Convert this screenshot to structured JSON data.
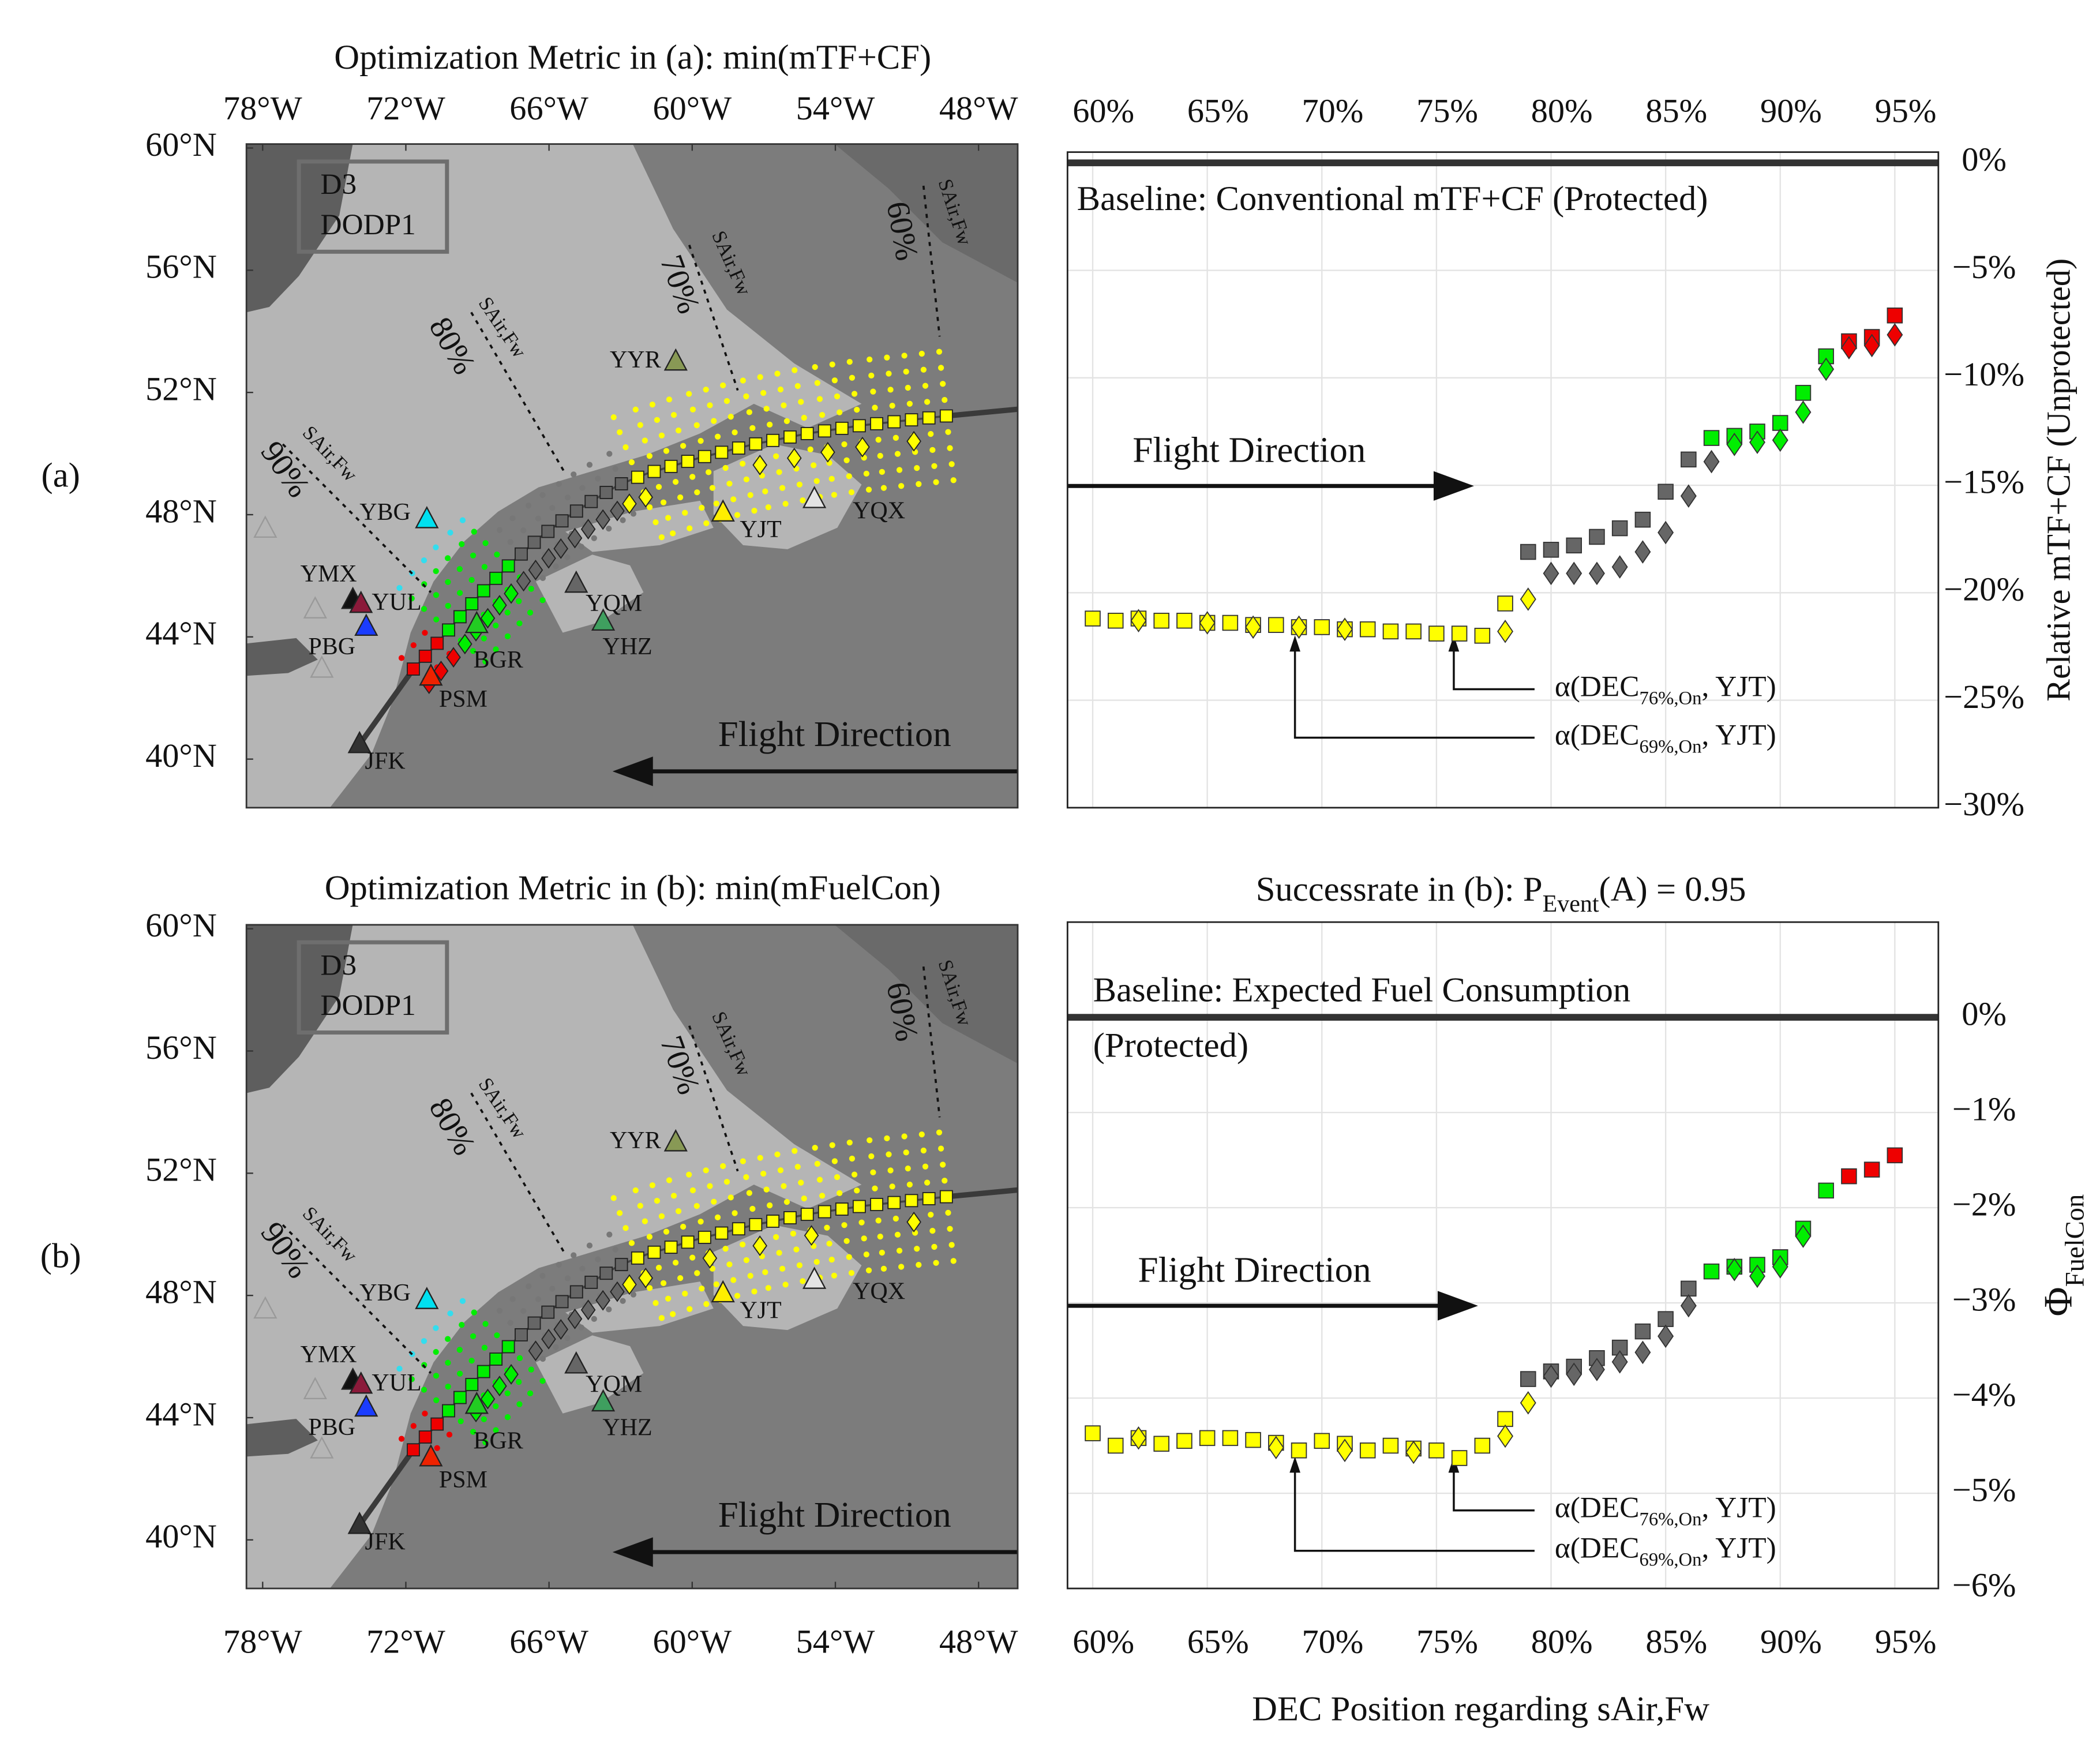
{
  "chart_data": [
    {
      "type": "map",
      "panel_label": "(a)",
      "title": "Optimization Metric in (a): min(mTF+CF)",
      "xaxis_side": "top",
      "xlim": [
        -78.68,
        -46.36
      ],
      "ylim": [
        38.41,
        60.13
      ],
      "xticks": [
        {
          "value": -78,
          "label": "78°W"
        },
        {
          "value": -72,
          "label": "72°W"
        },
        {
          "value": -66,
          "label": "66°W"
        },
        {
          "value": -60,
          "label": "60°W"
        },
        {
          "value": -54,
          "label": "54°W"
        },
        {
          "value": -48,
          "label": "48°W"
        }
      ],
      "yticks": [
        {
          "value": 40,
          "label": "40°N"
        },
        {
          "value": 44,
          "label": "44°N"
        },
        {
          "value": 48,
          "label": "48°N"
        },
        {
          "value": 52,
          "label": "52°N"
        },
        {
          "value": 56,
          "label": "56°N"
        },
        {
          "value": 60,
          "label": "60°N"
        }
      ],
      "box_text": [
        "D3",
        "DODP1"
      ],
      "annotation": "Flight Direction",
      "dec_lines": [
        {
          "label": "60%",
          "sublabel": "SAir,Fw"
        },
        {
          "label": "70%",
          "sublabel": "SAir,Fw"
        },
        {
          "label": "80%",
          "sublabel": "SAir,Fw"
        },
        {
          "label": "90%",
          "sublabel": "SAir,Fw"
        }
      ],
      "airports": [
        {
          "name": "YBG",
          "lon": -71.12,
          "lat": 47.84,
          "color": "#00e0f0"
        },
        {
          "name": "YMX",
          "lon": -74.22,
          "lat": 45.2,
          "color": "#111111"
        },
        {
          "name": "YUL",
          "lon": -73.88,
          "lat": 45.07,
          "color": "#8b1a3a"
        },
        {
          "name": "PBG",
          "lon": -73.66,
          "lat": 44.32,
          "color": "#1a3cff"
        },
        {
          "name": "BGR",
          "lon": -69.03,
          "lat": 44.41,
          "color": "#22cc22"
        },
        {
          "name": "PSM",
          "lon": -70.95,
          "lat": 42.69,
          "color": "#ee2200"
        },
        {
          "name": "JFK",
          "lon": -73.94,
          "lat": 40.48,
          "color": "#333333"
        },
        {
          "name": "YQM",
          "lon": -64.86,
          "lat": 45.73,
          "color": "#666666"
        },
        {
          "name": "YHZ",
          "lon": -63.73,
          "lat": 44.49,
          "color": "#3f9f5f"
        },
        {
          "name": "YJT",
          "lon": -58.71,
          "lat": 48.06,
          "color": "#ffee00"
        },
        {
          "name": "YQX",
          "lon": -54.88,
          "lat": 48.5,
          "color": "#e4e4e4"
        },
        {
          "name": "YYR",
          "lon": -60.69,
          "lat": 53.0,
          "color": "#889955"
        },
        {
          "name": null,
          "lon": -77.89,
          "lat": 47.53,
          "color": "#999999"
        },
        {
          "name": null,
          "lon": -75.8,
          "lat": 44.89,
          "color": "#999999"
        },
        {
          "name": null,
          "lon": -75.52,
          "lat": 42.95,
          "color": "#999999"
        }
      ]
    },
    {
      "type": "scatter",
      "xaxis_side": "top",
      "grid": true,
      "xlim": [
        58.9,
        96.9
      ],
      "ylim": [
        -30,
        0.5
      ],
      "xticks": [
        {
          "value": 60,
          "label": "60%"
        },
        {
          "value": 65,
          "label": "65%"
        },
        {
          "value": 70,
          "label": "70%"
        },
        {
          "value": 75,
          "label": "75%"
        },
        {
          "value": 80,
          "label": "80%"
        },
        {
          "value": 85,
          "label": "85%"
        },
        {
          "value": 90,
          "label": "90%"
        },
        {
          "value": 95,
          "label": "95%"
        }
      ],
      "yticks": [
        {
          "value": 0,
          "label": "0%"
        },
        {
          "value": -5,
          "label": "−5%"
        },
        {
          "value": -10,
          "label": "−10%"
        },
        {
          "value": -15,
          "label": "−15%"
        },
        {
          "value": -20,
          "label": "−20%"
        },
        {
          "value": -25,
          "label": "−25%"
        },
        {
          "value": -30,
          "label": "−30%"
        }
      ],
      "ylabel": [
        "Relative mTF+CF (Unprotected)"
      ],
      "baseline": 0,
      "baseline_label": [
        "Baseline: Conventional mTF+CF (Protected)"
      ],
      "annotation": "Flight Direction",
      "alpha_labels": [
        [
          "α(DEC",
          "76%,On",
          ", YJT)"
        ],
        [
          "α(DEC",
          "69%,On",
          ", YJT)"
        ]
      ],
      "series": [
        {
          "marker": "square",
          "x": [
            60,
            61,
            62,
            63,
            64,
            65,
            66,
            67,
            68,
            69,
            70,
            71,
            72,
            73,
            74,
            75,
            76,
            77,
            78,
            79,
            80,
            81,
            82,
            83,
            84,
            85,
            86,
            87,
            88,
            89,
            90,
            91,
            92,
            93,
            94,
            95
          ],
          "values": [
            -21.2,
            -21.3,
            -21.2,
            -21.3,
            -21.3,
            -21.4,
            -21.4,
            -21.5,
            -21.5,
            -21.6,
            -21.6,
            -21.7,
            -21.7,
            -21.8,
            -21.8,
            -21.9,
            -21.9,
            -22.0,
            -20.5,
            -18.1,
            -18.0,
            -17.8,
            -17.4,
            -17.0,
            -16.6,
            -15.3,
            -13.8,
            -12.8,
            -12.7,
            -12.5,
            -12.1,
            -10.7,
            -9.0,
            -8.3,
            -8.1,
            -7.1
          ],
          "colors": [
            "#ffff00",
            "#ffff00",
            "#ffff00",
            "#ffff00",
            "#ffff00",
            "#ffff00",
            "#ffff00",
            "#ffff00",
            "#ffff00",
            "#ffff00",
            "#ffff00",
            "#ffff00",
            "#ffff00",
            "#ffff00",
            "#ffff00",
            "#ffff00",
            "#ffff00",
            "#ffff00",
            "#ffff00",
            "#666666",
            "#666666",
            "#666666",
            "#666666",
            "#666666",
            "#666666",
            "#666666",
            "#666666",
            "#00ee00",
            "#00ee00",
            "#00ee00",
            "#00ee00",
            "#00ee00",
            "#00ee00",
            "#ee0000",
            "#ee0000",
            "#ee0000"
          ]
        },
        {
          "marker": "diamond",
          "x": [
            62,
            65,
            67,
            69,
            71,
            78,
            79,
            80,
            81,
            82,
            83,
            84,
            85,
            86,
            87,
            88,
            89,
            90,
            91,
            92,
            93,
            94,
            95
          ],
          "values": [
            -21.3,
            -21.4,
            -21.6,
            -21.6,
            -21.7,
            -21.8,
            -20.3,
            -19.1,
            -19.1,
            -19.1,
            -18.8,
            -18.1,
            -17.2,
            -15.5,
            -13.9,
            -13.1,
            -13.0,
            -12.9,
            -11.6,
            -9.6,
            -8.6,
            -8.5,
            -8.0
          ],
          "colors": [
            "#ffff00",
            "#ffff00",
            "#ffff00",
            "#ffff00",
            "#ffff00",
            "#ffff00",
            "#ffff00",
            "#666666",
            "#666666",
            "#666666",
            "#666666",
            "#666666",
            "#666666",
            "#666666",
            "#666666",
            "#00ee00",
            "#00ee00",
            "#00ee00",
            "#00ee00",
            "#00ee00",
            "#ee0000",
            "#ee0000",
            "#ee0000"
          ]
        }
      ]
    },
    {
      "type": "map",
      "panel_label": "(b)",
      "title": "Optimization Metric in (b): min(mFuelCon)",
      "xaxis_side": "bottom",
      "xlim": [
        -78.68,
        -46.36
      ],
      "ylim": [
        38.41,
        60.13
      ],
      "xticks": [
        {
          "value": -78,
          "label": "78°W"
        },
        {
          "value": -72,
          "label": "72°W"
        },
        {
          "value": -66,
          "label": "66°W"
        },
        {
          "value": -60,
          "label": "60°W"
        },
        {
          "value": -54,
          "label": "54°W"
        },
        {
          "value": -48,
          "label": "48°W"
        }
      ],
      "yticks": [
        {
          "value": 40,
          "label": "40°N"
        },
        {
          "value": 44,
          "label": "44°N"
        },
        {
          "value": 48,
          "label": "48°N"
        },
        {
          "value": 52,
          "label": "52°N"
        },
        {
          "value": 56,
          "label": "56°N"
        },
        {
          "value": 60,
          "label": "60°N"
        }
      ],
      "box_text": [
        "D3",
        "DODP1"
      ],
      "annotation": "Flight Direction",
      "dec_lines": [
        {
          "label": "60%",
          "sublabel": "SAir,Fw"
        },
        {
          "label": "70%",
          "sublabel": "SAir,Fw"
        },
        {
          "label": "80%",
          "sublabel": "SAir,Fw"
        },
        {
          "label": "90%",
          "sublabel": "SAir,Fw"
        }
      ],
      "airports": [
        {
          "name": "YBG",
          "lon": -71.12,
          "lat": 47.84,
          "color": "#00e0f0"
        },
        {
          "name": "YMX",
          "lon": -74.22,
          "lat": 45.2,
          "color": "#111111"
        },
        {
          "name": "YUL",
          "lon": -73.88,
          "lat": 45.07,
          "color": "#8b1a3a"
        },
        {
          "name": "PBG",
          "lon": -73.66,
          "lat": 44.32,
          "color": "#1a3cff"
        },
        {
          "name": "BGR",
          "lon": -69.03,
          "lat": 44.41,
          "color": "#22cc22"
        },
        {
          "name": "PSM",
          "lon": -70.95,
          "lat": 42.69,
          "color": "#ee2200"
        },
        {
          "name": "JFK",
          "lon": -73.94,
          "lat": 40.48,
          "color": "#333333"
        },
        {
          "name": "YQM",
          "lon": -64.86,
          "lat": 45.73,
          "color": "#666666"
        },
        {
          "name": "YHZ",
          "lon": -63.73,
          "lat": 44.49,
          "color": "#3f9f5f"
        },
        {
          "name": "YJT",
          "lon": -58.71,
          "lat": 48.06,
          "color": "#ffee00"
        },
        {
          "name": "YQX",
          "lon": -54.88,
          "lat": 48.5,
          "color": "#e4e4e4"
        },
        {
          "name": "YYR",
          "lon": -60.69,
          "lat": 53.0,
          "color": "#889955"
        },
        {
          "name": null,
          "lon": -77.89,
          "lat": 47.53,
          "color": "#999999"
        },
        {
          "name": null,
          "lon": -75.8,
          "lat": 44.89,
          "color": "#999999"
        },
        {
          "name": null,
          "lon": -75.52,
          "lat": 42.95,
          "color": "#999999"
        }
      ]
    },
    {
      "type": "scatter",
      "xaxis_side": "bottom",
      "grid": true,
      "xlim": [
        58.9,
        96.9
      ],
      "ylim": [
        -6,
        1
      ],
      "title": [
        "Successrate in (b): P",
        "Event",
        "(A) = 0.95"
      ],
      "xlabel": "DEC Position regarding sAir,Fw",
      "xticks": [
        {
          "value": 60,
          "label": "60%"
        },
        {
          "value": 65,
          "label": "65%"
        },
        {
          "value": 70,
          "label": "70%"
        },
        {
          "value": 75,
          "label": "75%"
        },
        {
          "value": 80,
          "label": "80%"
        },
        {
          "value": 85,
          "label": "85%"
        },
        {
          "value": 90,
          "label": "90%"
        },
        {
          "value": 95,
          "label": "95%"
        }
      ],
      "yticks": [
        {
          "value": 0,
          "label": "0%"
        },
        {
          "value": -1,
          "label": "−1%"
        },
        {
          "value": -2,
          "label": "−2%"
        },
        {
          "value": -3,
          "label": "−3%"
        },
        {
          "value": -4,
          "label": "−4%"
        },
        {
          "value": -5,
          "label": "−5%"
        },
        {
          "value": -6,
          "label": "−6%"
        }
      ],
      "ylabel": [
        "Φ",
        "FuelCon"
      ],
      "baseline": 0,
      "baseline_label": [
        "Baseline: Expected Fuel Consumption",
        "(Protected)"
      ],
      "annotation": "Flight Direction",
      "alpha_labels": [
        [
          "α(DEC",
          "76%,On",
          ", YJT)"
        ],
        [
          "α(DEC",
          "69%,On",
          ", YJT)"
        ]
      ],
      "series": [
        {
          "marker": "square",
          "x": [
            60,
            61,
            62,
            63,
            64,
            65,
            66,
            67,
            68,
            69,
            70,
            71,
            72,
            73,
            74,
            75,
            76,
            77,
            78,
            79,
            80,
            81,
            82,
            83,
            84,
            85,
            86,
            87,
            88,
            89,
            90,
            91,
            92,
            93,
            94,
            95
          ],
          "values": [
            -4.37,
            -4.5,
            -4.42,
            -4.48,
            -4.45,
            -4.42,
            -4.42,
            -4.44,
            -4.47,
            -4.55,
            -4.45,
            -4.48,
            -4.55,
            -4.5,
            -4.53,
            -4.55,
            -4.63,
            -4.5,
            -4.22,
            -3.8,
            -3.72,
            -3.67,
            -3.58,
            -3.47,
            -3.3,
            -3.17,
            -2.85,
            -2.67,
            -2.62,
            -2.6,
            -2.52,
            -2.22,
            -1.82,
            -1.67,
            -1.6,
            -1.45
          ],
          "colors": [
            "#ffff00",
            "#ffff00",
            "#ffff00",
            "#ffff00",
            "#ffff00",
            "#ffff00",
            "#ffff00",
            "#ffff00",
            "#ffff00",
            "#ffff00",
            "#ffff00",
            "#ffff00",
            "#ffff00",
            "#ffff00",
            "#ffff00",
            "#ffff00",
            "#ffff00",
            "#ffff00",
            "#ffff00",
            "#666666",
            "#666666",
            "#666666",
            "#666666",
            "#666666",
            "#666666",
            "#666666",
            "#666666",
            "#00ee00",
            "#00ee00",
            "#00ee00",
            "#00ee00",
            "#00ee00",
            "#00ee00",
            "#ee0000",
            "#ee0000",
            "#ee0000"
          ]
        },
        {
          "marker": "diamond",
          "x": [
            62,
            68,
            71,
            74,
            78,
            79,
            80,
            81,
            82,
            83,
            84,
            85,
            86,
            88,
            89,
            90,
            91
          ],
          "values": [
            -4.42,
            -4.52,
            -4.55,
            -4.57,
            -4.4,
            -4.05,
            -3.77,
            -3.75,
            -3.7,
            -3.62,
            -3.52,
            -3.35,
            -3.03,
            -2.65,
            -2.72,
            -2.62,
            -2.3
          ],
          "colors": [
            "#ffff00",
            "#ffff00",
            "#ffff00",
            "#ffff00",
            "#ffff00",
            "#ffff00",
            "#666666",
            "#666666",
            "#666666",
            "#666666",
            "#666666",
            "#666666",
            "#666666",
            "#00ee00",
            "#00ee00",
            "#00ee00",
            "#00ee00"
          ]
        }
      ]
    }
  ]
}
